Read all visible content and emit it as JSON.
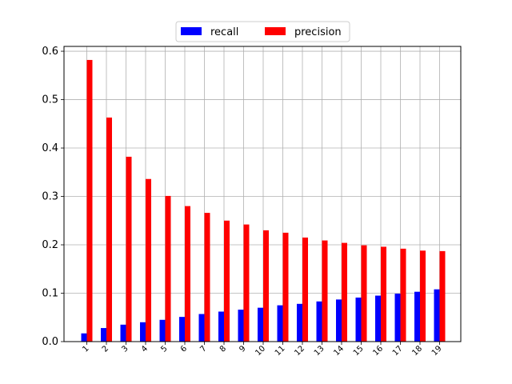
{
  "chart_data": {
    "type": "bar",
    "categories": [
      "1",
      "2",
      "3",
      "4",
      "5",
      "6",
      "7",
      "8",
      "9",
      "10",
      "11",
      "12",
      "13",
      "14",
      "15",
      "16",
      "17",
      "18",
      "19"
    ],
    "series": [
      {
        "name": "recall",
        "color": "#0000ff",
        "values": [
          0.017,
          0.028,
          0.035,
          0.04,
          0.045,
          0.051,
          0.057,
          0.062,
          0.066,
          0.07,
          0.075,
          0.078,
          0.083,
          0.087,
          0.091,
          0.095,
          0.099,
          0.103,
          0.108
        ]
      },
      {
        "name": "precision",
        "color": "#ff0000",
        "values": [
          0.582,
          0.463,
          0.382,
          0.336,
          0.301,
          0.28,
          0.266,
          0.25,
          0.242,
          0.23,
          0.225,
          0.215,
          0.209,
          0.204,
          0.199,
          0.196,
          0.192,
          0.188,
          0.187
        ]
      }
    ],
    "yticks": [
      "0.0",
      "0.1",
      "0.2",
      "0.3",
      "0.4",
      "0.5",
      "0.6"
    ],
    "ylim": [
      0,
      0.61
    ],
    "title": "",
    "xlabel": "",
    "ylabel": "",
    "grid": true,
    "legend": "top-center"
  }
}
